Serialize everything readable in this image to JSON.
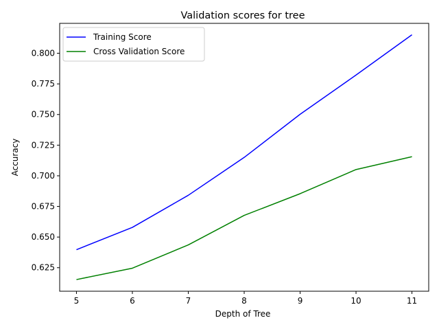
{
  "chart_data": {
    "type": "line",
    "title": "Validation scores for tree",
    "xlabel": "Depth of Tree",
    "ylabel": "Accuracy",
    "x": [
      5,
      6,
      7,
      8,
      9,
      10,
      11
    ],
    "xlim": [
      4.7,
      11.3
    ],
    "ylim": [
      0.6058,
      0.8244
    ],
    "xticks": [
      "5",
      "6",
      "7",
      "8",
      "9",
      "10",
      "11"
    ],
    "yticks": [
      "0.625",
      "0.650",
      "0.675",
      "0.700",
      "0.725",
      "0.750",
      "0.775",
      "0.800"
    ],
    "grid": false,
    "legend_position": "upper-left",
    "series": [
      {
        "name": "Training Score",
        "color": "#0000ff",
        "values": [
          0.6397,
          0.6579,
          0.6841,
          0.715,
          0.7502,
          0.7822,
          0.8151
        ]
      },
      {
        "name": "Cross Validation Score",
        "color": "#008000",
        "values": [
          0.6153,
          0.6246,
          0.6436,
          0.6677,
          0.6854,
          0.7051,
          0.7156
        ]
      }
    ]
  }
}
